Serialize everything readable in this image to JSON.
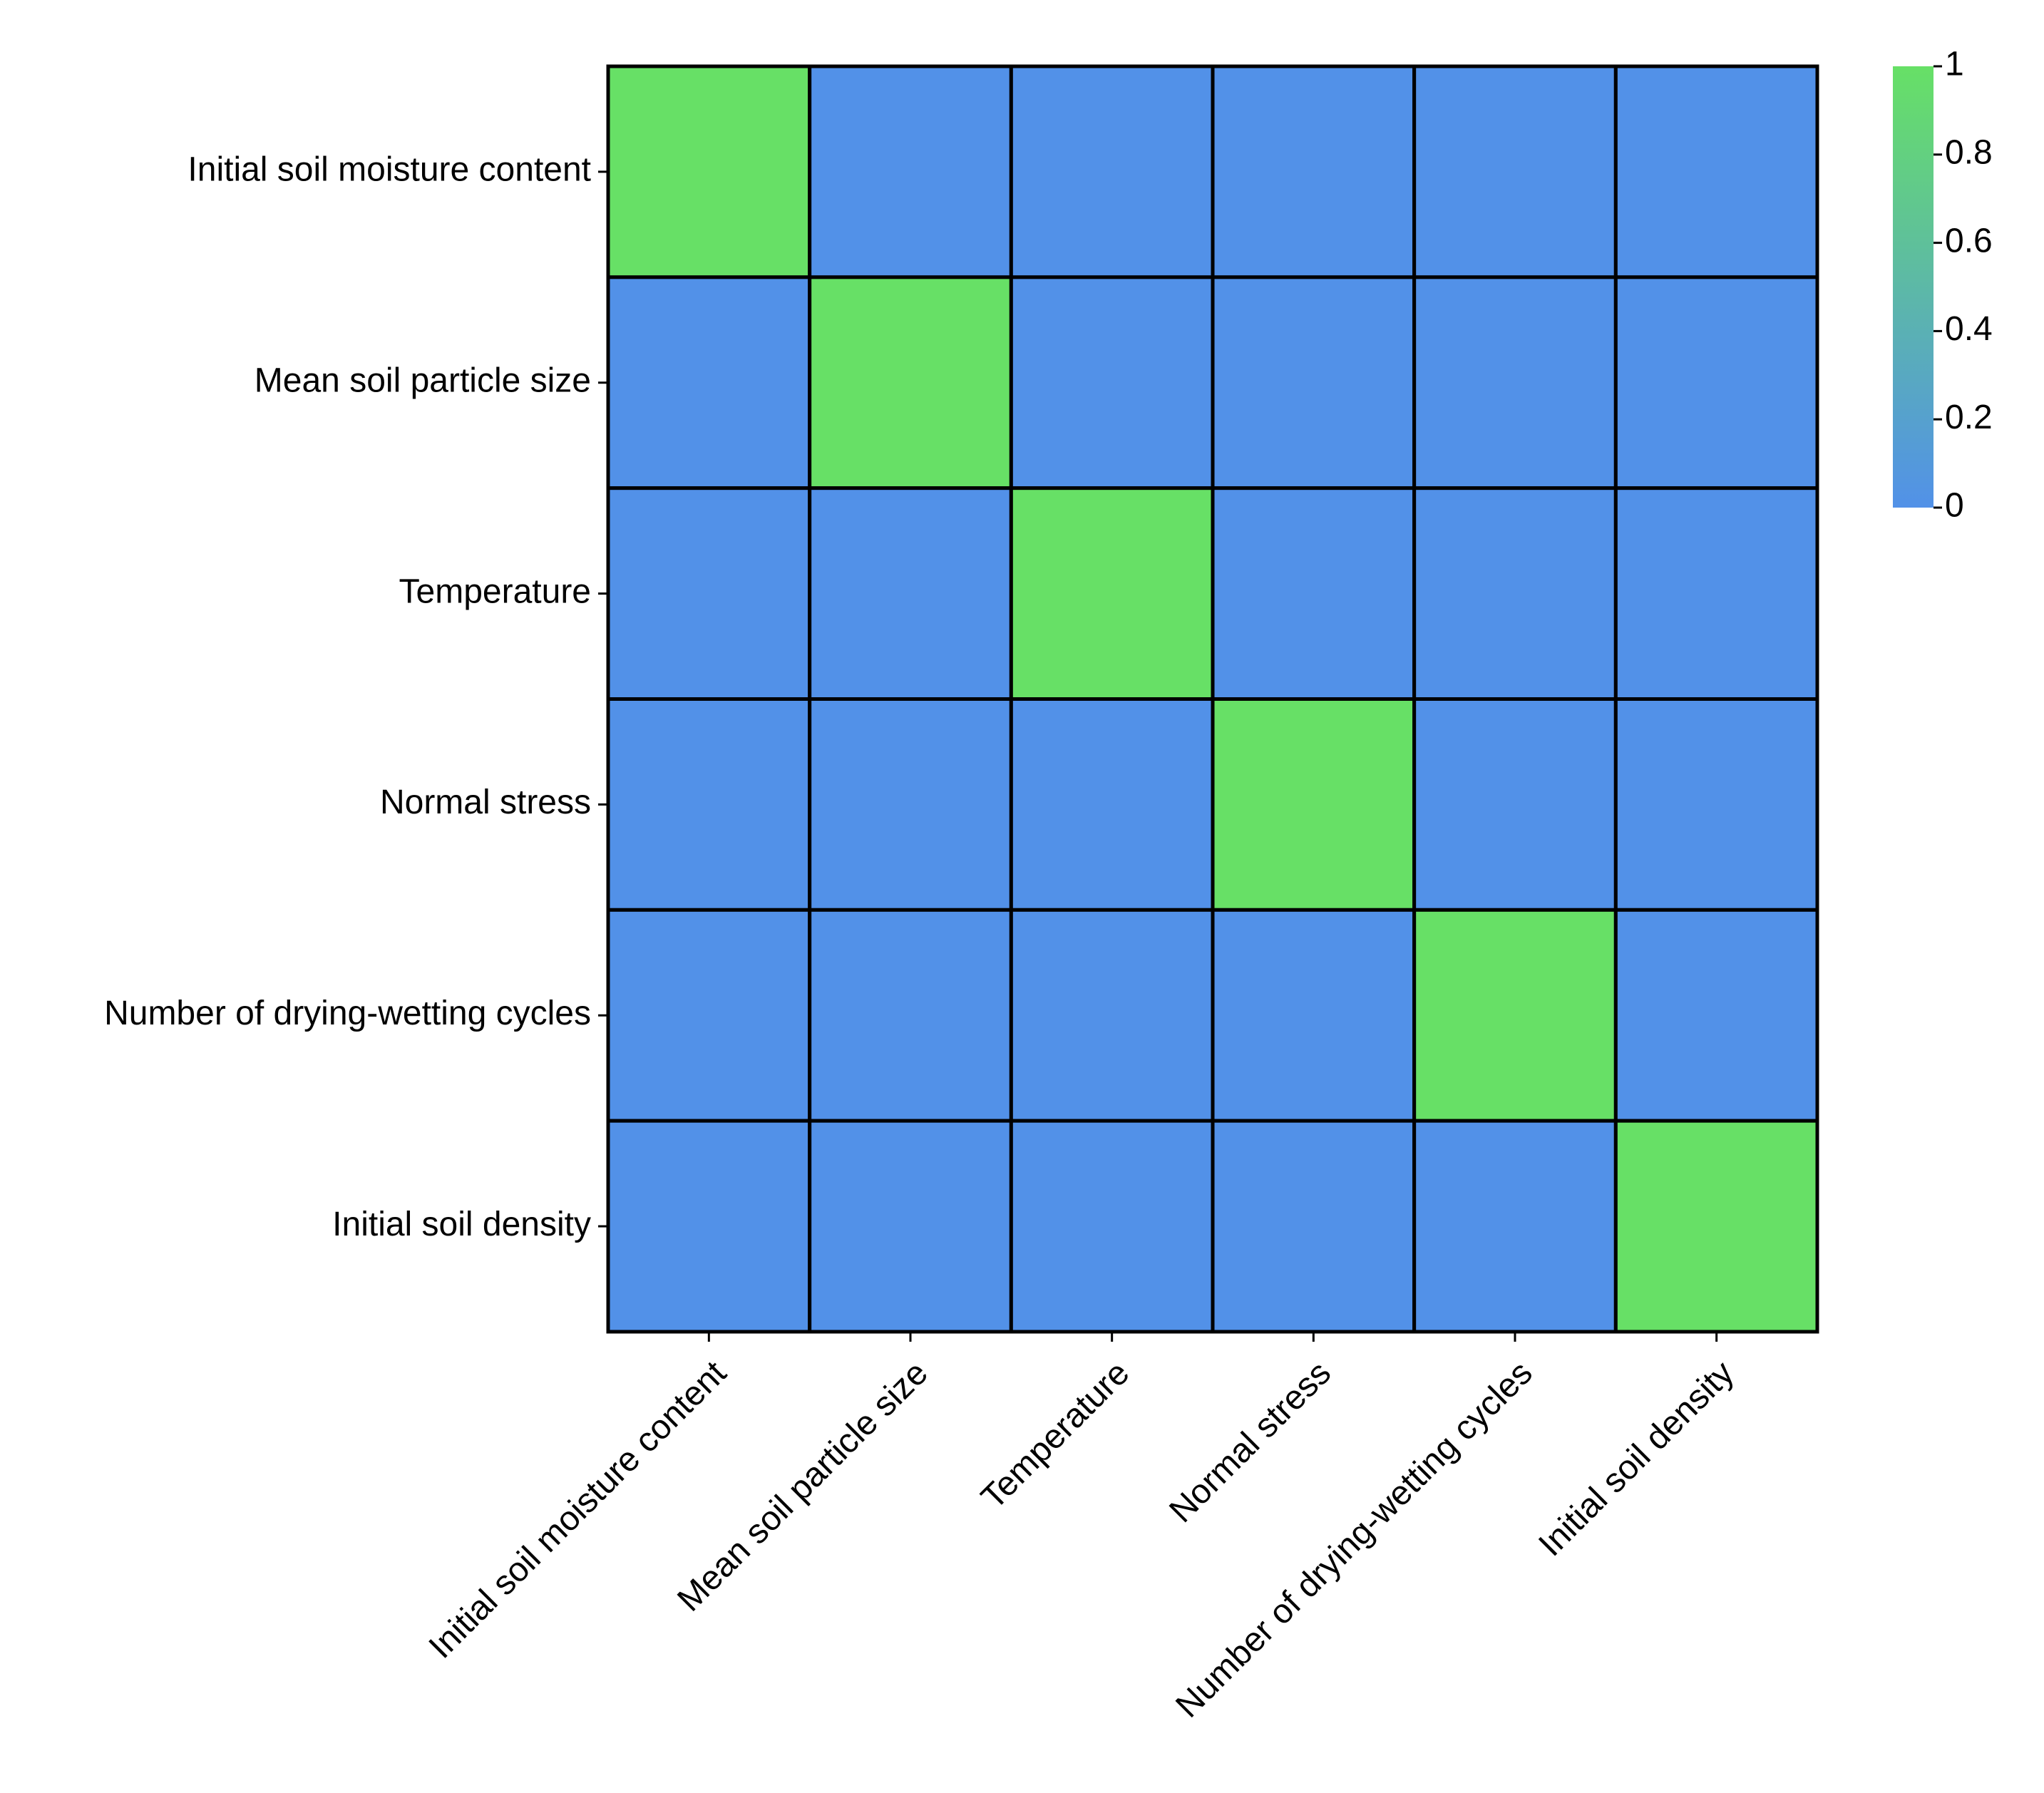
{
  "chart_data": {
    "type": "heatmap",
    "title": "",
    "xlabel": "",
    "ylabel": "",
    "rows": [
      "Initial soil moisture content",
      "Mean soil particle size",
      "Temperature",
      "Normal stress",
      "Number of drying-wetting cycles",
      "Initial soil density"
    ],
    "columns": [
      "Initial soil moisture content",
      "Mean soil particle size",
      "Temperature",
      "Normal stress",
      "Number of drying-wetting cycles",
      "Initial soil density"
    ],
    "values": [
      [
        1,
        0,
        0,
        0,
        0,
        0
      ],
      [
        0,
        1,
        0,
        0,
        0,
        0
      ],
      [
        0,
        0,
        1,
        0,
        0,
        0
      ],
      [
        0,
        0,
        0,
        1,
        0,
        0
      ],
      [
        0,
        0,
        0,
        0,
        1,
        0
      ],
      [
        0,
        0,
        0,
        0,
        0,
        1
      ]
    ],
    "colorbar": {
      "range": [
        0,
        1
      ],
      "ticks": [
        0,
        0.2,
        0.4,
        0.6,
        0.8,
        1
      ],
      "tick_labels": [
        "0",
        "0.2",
        "0.4",
        "0.6",
        "0.8",
        "1"
      ],
      "low_color": "#5291E8",
      "high_color": "#67E066",
      "placement": "right"
    },
    "cell_border_color": "#000000",
    "grid": true
  }
}
